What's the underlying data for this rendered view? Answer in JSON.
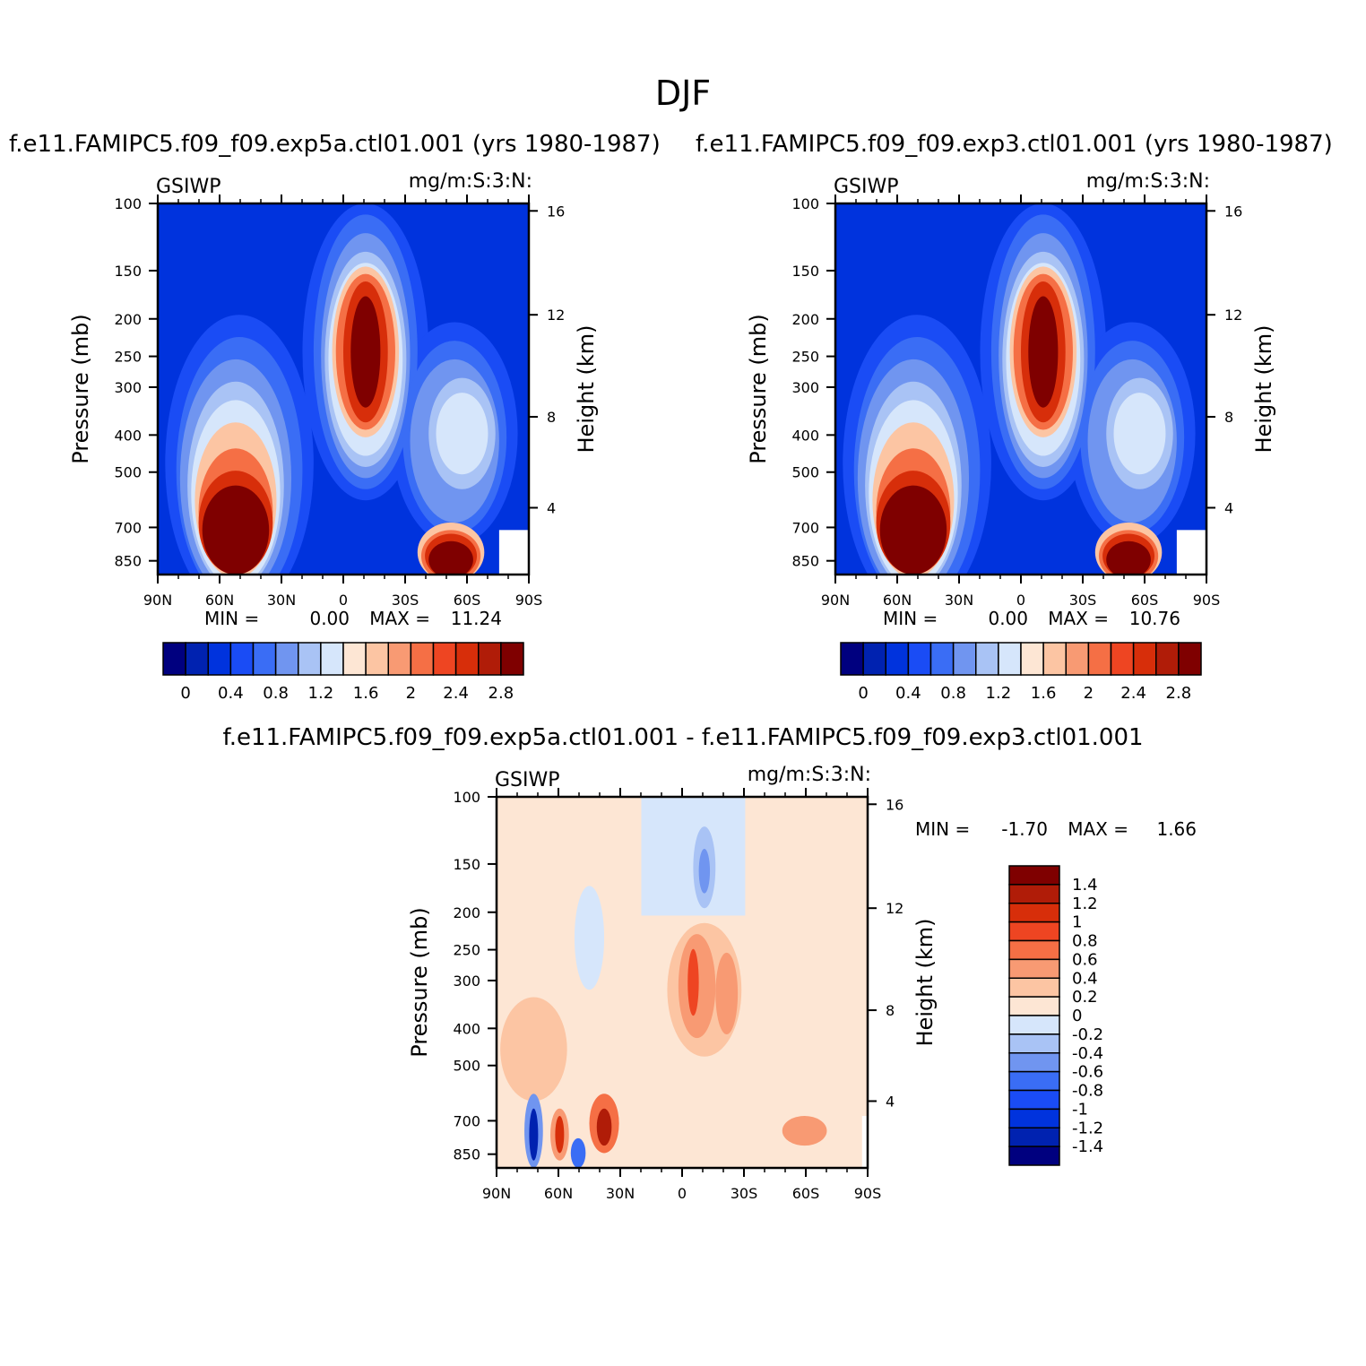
{
  "page_title": "DJF",
  "chart_data": [
    {
      "type": "heatmap",
      "title": "f.e11.FAMIPC5.f09_f09.exp5a.ctl01.001 (yrs 1980-1987)",
      "left_label": "GSIWP",
      "right_label": "mg/m:S:3:N:",
      "ylabel": "Pressure (mb)",
      "ylabel_right": "Height (km)",
      "x_ticks": [
        "90N",
        "60N",
        "30N",
        "0",
        "30S",
        "60S",
        "90S"
      ],
      "y_ticks": [
        "100",
        "150",
        "200",
        "250",
        "300",
        "400",
        "500",
        "700",
        "850"
      ],
      "y_right_ticks": [
        "16",
        "12",
        "8",
        "4"
      ],
      "min_label": "MIN =",
      "min_value": "0.00",
      "max_label": "MAX =",
      "max_value": "11.24",
      "colorbar_labels": [
        "0",
        "0.4",
        "0.8",
        "1.2",
        "1.6",
        "2",
        "2.4",
        "2.8"
      ],
      "colors": [
        "#00007f",
        "#0022b0",
        "#0033dd",
        "#1a4cf5",
        "#3a6df5",
        "#7095f0",
        "#a9c3f5",
        "#d6e6fb",
        "#fde6d4",
        "#fcc5a3",
        "#f89a73",
        "#f56f45",
        "#ee4522",
        "#d72e0a",
        "#b01c08",
        "#7f0000"
      ]
    },
    {
      "type": "heatmap",
      "title": "f.e11.FAMIPC5.f09_f09.exp3.ctl01.001 (yrs 1980-1987)",
      "left_label": "GSIWP",
      "right_label": "mg/m:S:3:N:",
      "ylabel": "Pressure (mb)",
      "ylabel_right": "Height (km)",
      "x_ticks": [
        "90N",
        "60N",
        "30N",
        "0",
        "30S",
        "60S",
        "90S"
      ],
      "y_ticks": [
        "100",
        "150",
        "200",
        "250",
        "300",
        "400",
        "500",
        "700",
        "850"
      ],
      "y_right_ticks": [
        "16",
        "12",
        "8",
        "4"
      ],
      "min_label": "MIN =",
      "min_value": "0.00",
      "max_label": "MAX =",
      "max_value": "10.76",
      "colorbar_labels": [
        "0",
        "0.4",
        "0.8",
        "1.2",
        "1.6",
        "2",
        "2.4",
        "2.8"
      ],
      "colors": [
        "#00007f",
        "#0022b0",
        "#0033dd",
        "#1a4cf5",
        "#3a6df5",
        "#7095f0",
        "#a9c3f5",
        "#d6e6fb",
        "#fde6d4",
        "#fcc5a3",
        "#f89a73",
        "#f56f45",
        "#ee4522",
        "#d72e0a",
        "#b01c08",
        "#7f0000"
      ]
    },
    {
      "type": "heatmap",
      "title": "f.e11.FAMIPC5.f09_f09.exp5a.ctl01.001 - f.e11.FAMIPC5.f09_f09.exp3.ctl01.001",
      "left_label": "GSIWP",
      "right_label": "mg/m:S:3:N:",
      "ylabel": "Pressure (mb)",
      "ylabel_right": "Height (km)",
      "x_ticks": [
        "90N",
        "60N",
        "30N",
        "0",
        "30S",
        "60S",
        "90S"
      ],
      "y_ticks": [
        "100",
        "150",
        "200",
        "250",
        "300",
        "400",
        "500",
        "700",
        "850"
      ],
      "y_right_ticks": [
        "16",
        "12",
        "8",
        "4"
      ],
      "min_label": "MIN =",
      "min_value": "-1.70",
      "max_label": "MAX =",
      "max_value": "1.66",
      "colorbar_labels": [
        "1.4",
        "1.2",
        "1",
        "0.8",
        "0.6",
        "0.4",
        "0.2",
        "0",
        "-0.2",
        "-0.4",
        "-0.6",
        "-0.8",
        "-1",
        "-1.2",
        "-1.4"
      ],
      "colors": [
        "#7f0000",
        "#b01c08",
        "#d72e0a",
        "#ee4522",
        "#f56f45",
        "#f89a73",
        "#fcc5a3",
        "#fde6d4",
        "#d6e6fb",
        "#a9c3f5",
        "#7095f0",
        "#3a6df5",
        "#1a4cf5",
        "#0033dd",
        "#0022b0",
        "#00007f"
      ]
    }
  ]
}
